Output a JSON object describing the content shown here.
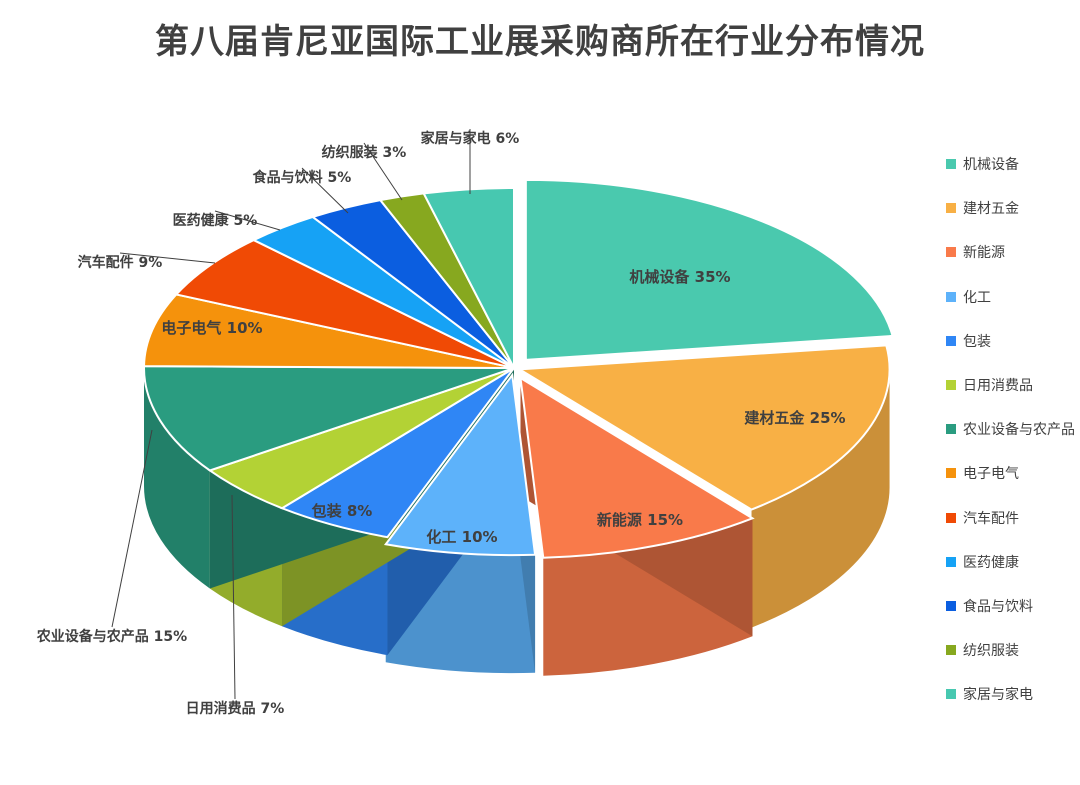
{
  "chart_data": {
    "type": "pie",
    "title": "第八届肯尼亚国际工业展采购商所在行业分布情况",
    "legend_position": "right",
    "slices": [
      {
        "name": "机械设备",
        "label": "机械设备 35%",
        "value": 35,
        "color": "#4ac9ae"
      },
      {
        "name": "建材五金",
        "label": "建材五金 25%",
        "value": 25,
        "color": "#f8b045"
      },
      {
        "name": "新能源",
        "label": "新能源 15%",
        "value": 15,
        "color": "#f97a4a"
      },
      {
        "name": "化工",
        "label": "化工 10%",
        "value": 10,
        "color": "#5db2fa"
      },
      {
        "name": "包装",
        "label": "包装 8%",
        "value": 8,
        "color": "#2f86f5"
      },
      {
        "name": "日用消费品",
        "label": "日用消费品 7%",
        "value": 7,
        "color": "#b3d235"
      },
      {
        "name": "农业设备与农产品",
        "label": "农业设备与农产品 15%",
        "value": 15,
        "color": "#2a9c80"
      },
      {
        "name": "电子电气",
        "label": "电子电气 10%",
        "value": 10,
        "color": "#f5920c"
      },
      {
        "name": "汽车配件",
        "label": "汽车配件 9%",
        "value": 9,
        "color": "#f04a05"
      },
      {
        "name": "医药健康",
        "label": "医药健康 5%",
        "value": 5,
        "color": "#16a2f5"
      },
      {
        "name": "食品与饮料",
        "label": "食品与饮料 5%",
        "value": 5,
        "color": "#0b5ee0"
      },
      {
        "name": "纺织服装",
        "label": "纺织服装 3%",
        "value": 3,
        "color": "#87a81f"
      },
      {
        "name": "家居与家电",
        "label": "家居与家电 6%",
        "value": 6,
        "color": "#47c8b0"
      }
    ]
  }
}
